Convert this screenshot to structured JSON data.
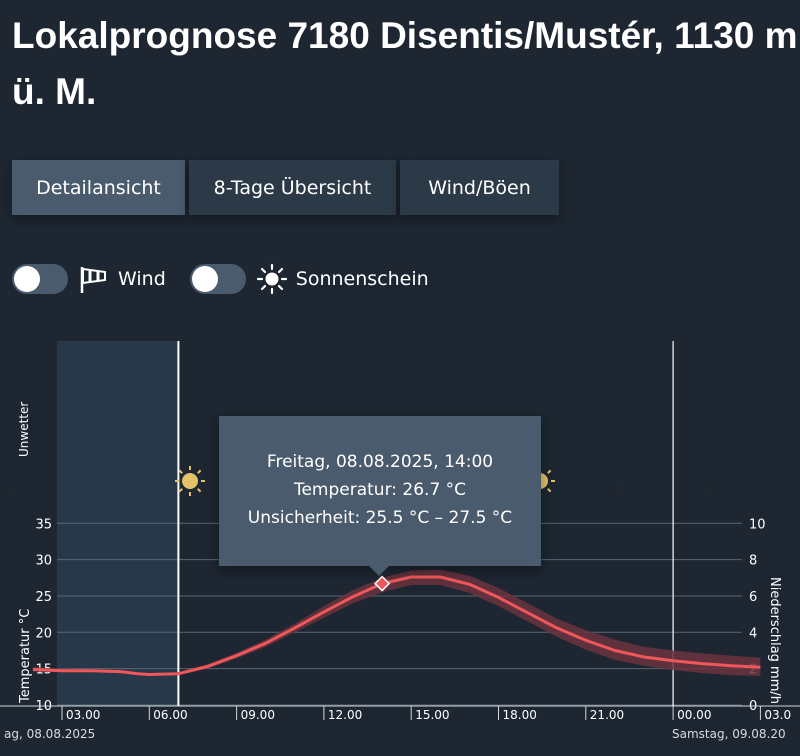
{
  "page": {
    "title": "Lokalprognose 7180 Disentis/Mustér, 1130 m ü. M."
  },
  "tabs": [
    {
      "label": "Detailansicht",
      "active": true
    },
    {
      "label": "8-Tage Übersicht",
      "active": false
    },
    {
      "label": "Wind/Böen",
      "active": false
    }
  ],
  "toggles": {
    "wind": {
      "label": "Wind",
      "icon": "windsock-icon",
      "on": false
    },
    "sunshine": {
      "label": "Sonnenschein",
      "icon": "sun-icon",
      "on": false
    }
  },
  "tooltip": {
    "date": "Freitag, 08.08.2025, 14:00",
    "temperature": "Temperatur: 26.7 °C",
    "uncertainty": "Unsicherheit: 25.5 °C – 27.5 °C"
  },
  "colors": {
    "background": "#1d2631",
    "temperature_line": "#f0575a",
    "uncertainty_band": "#6b3440",
    "past_shade": "#27384a",
    "tab_active": "#4a5b6e",
    "tab_inactive": "#2c3a48"
  },
  "chart_data": {
    "type": "line",
    "y_left_label": "Temperatur °C",
    "y_right_label": "Niederschlag mm/h",
    "storm_label": "Unwetter",
    "y_left_ticks": [
      10,
      15,
      20,
      25,
      30,
      35
    ],
    "y_right_ticks": [
      0,
      2,
      4,
      6,
      8,
      10
    ],
    "ylim_left": [
      10,
      35
    ],
    "ylim_right": [
      0,
      10
    ],
    "x_ticks": [
      "03.00",
      "06.00",
      "09.00",
      "12.00",
      "15.00",
      "18.00",
      "21.00",
      "00.00",
      "03.0"
    ],
    "day_labels": [
      "ag, 08.08.2025",
      "Samstag, 09.08.20"
    ],
    "weather_icons": [
      "moon-icon",
      "moon-icon",
      "sun-icon",
      "sun-icon",
      "moon-icon",
      "moon-icon"
    ],
    "series": [
      {
        "name": "Temperatur",
        "x_hours": [
          2,
          3,
          4,
          5,
          5.6,
          6,
          7,
          8,
          9,
          10,
          11,
          12,
          13,
          14,
          15,
          16,
          17,
          18,
          19,
          20,
          21,
          22,
          23,
          24,
          25,
          26,
          27
        ],
        "values": [
          14.9,
          14.7,
          14.7,
          14.6,
          14.3,
          14.2,
          14.3,
          15.3,
          16.8,
          18.5,
          20.6,
          22.8,
          24.9,
          26.7,
          27.6,
          27.6,
          26.6,
          24.8,
          22.7,
          20.6,
          18.9,
          17.5,
          16.6,
          16.1,
          15.7,
          15.4,
          15.2
        ],
        "lower": [
          14.6,
          14.5,
          14.5,
          14.4,
          14.1,
          14.0,
          14.1,
          15.0,
          16.4,
          18.0,
          20.0,
          22.0,
          24.0,
          25.5,
          26.5,
          26.5,
          25.4,
          23.6,
          21.5,
          19.4,
          17.6,
          16.2,
          15.4,
          14.8,
          14.4,
          14.1,
          14.0
        ],
        "upper": [
          15.2,
          15.0,
          14.9,
          14.8,
          14.5,
          14.4,
          14.5,
          15.6,
          17.2,
          19.0,
          21.2,
          23.6,
          25.8,
          27.5,
          28.5,
          28.6,
          27.8,
          26.1,
          24.0,
          21.9,
          20.3,
          19.0,
          18.0,
          17.5,
          17.1,
          16.8,
          16.5
        ]
      }
    ],
    "highlight": {
      "x_hours": 14,
      "value": 26.7
    },
    "now_marker_hours": 7,
    "day_boundary_hours": 24
  }
}
